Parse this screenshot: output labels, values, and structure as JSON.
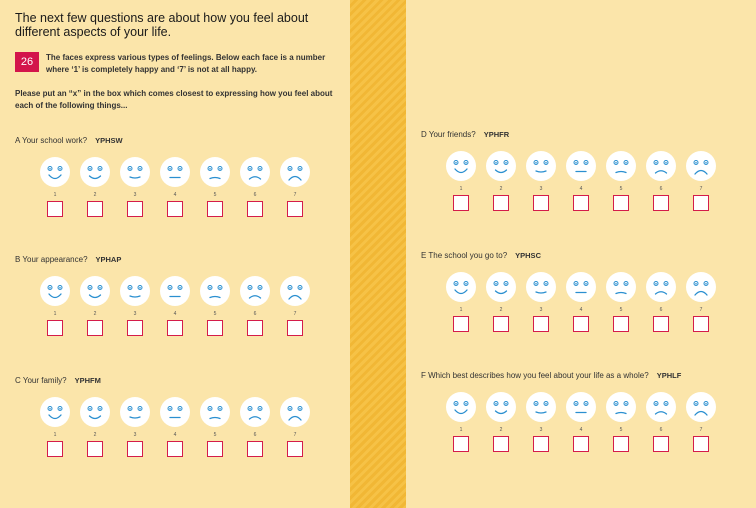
{
  "intro": {
    "title": "The next few questions are about how you feel about different aspects of your life.",
    "question_number": "26",
    "description": "The faces express various types of feelings. Below each face is a number where ‘1’ is completely happy and ‘7’ is not at all happy.",
    "instruction": "Please put an “x” in the box which comes closest to expressing how you feel about each of the following things..."
  },
  "scale_numbers": [
    "1",
    "2",
    "3",
    "4",
    "5",
    "6",
    "7"
  ],
  "face_moods": [
    "completely-happy",
    "very-happy",
    "happy",
    "neutral",
    "unhappy",
    "very-unhappy",
    "not-at-all-happy"
  ],
  "colors": {
    "badge": "#d3154b",
    "checkbox_border": "#d41c4a",
    "page": "#fbe5aa",
    "spine": "#f6c246",
    "face_fill": "#ffffff",
    "face_ink": "#2a8fd0"
  },
  "items": [
    {
      "prefix": "A",
      "label": "Your school work?",
      "code": "YPHSW"
    },
    {
      "prefix": "B",
      "label": "Your appearance?",
      "code": "YPHAP"
    },
    {
      "prefix": "C",
      "label": "Your family?",
      "code": "YPHFM"
    },
    {
      "prefix": "D",
      "label": "Your friends?",
      "code": "YPHFR"
    },
    {
      "prefix": "E",
      "label": "The school you go to?",
      "code": "YPHSC"
    },
    {
      "prefix": "F",
      "label": "Which best describes how you feel about your life as a whole?",
      "code": "YPHLF"
    }
  ]
}
